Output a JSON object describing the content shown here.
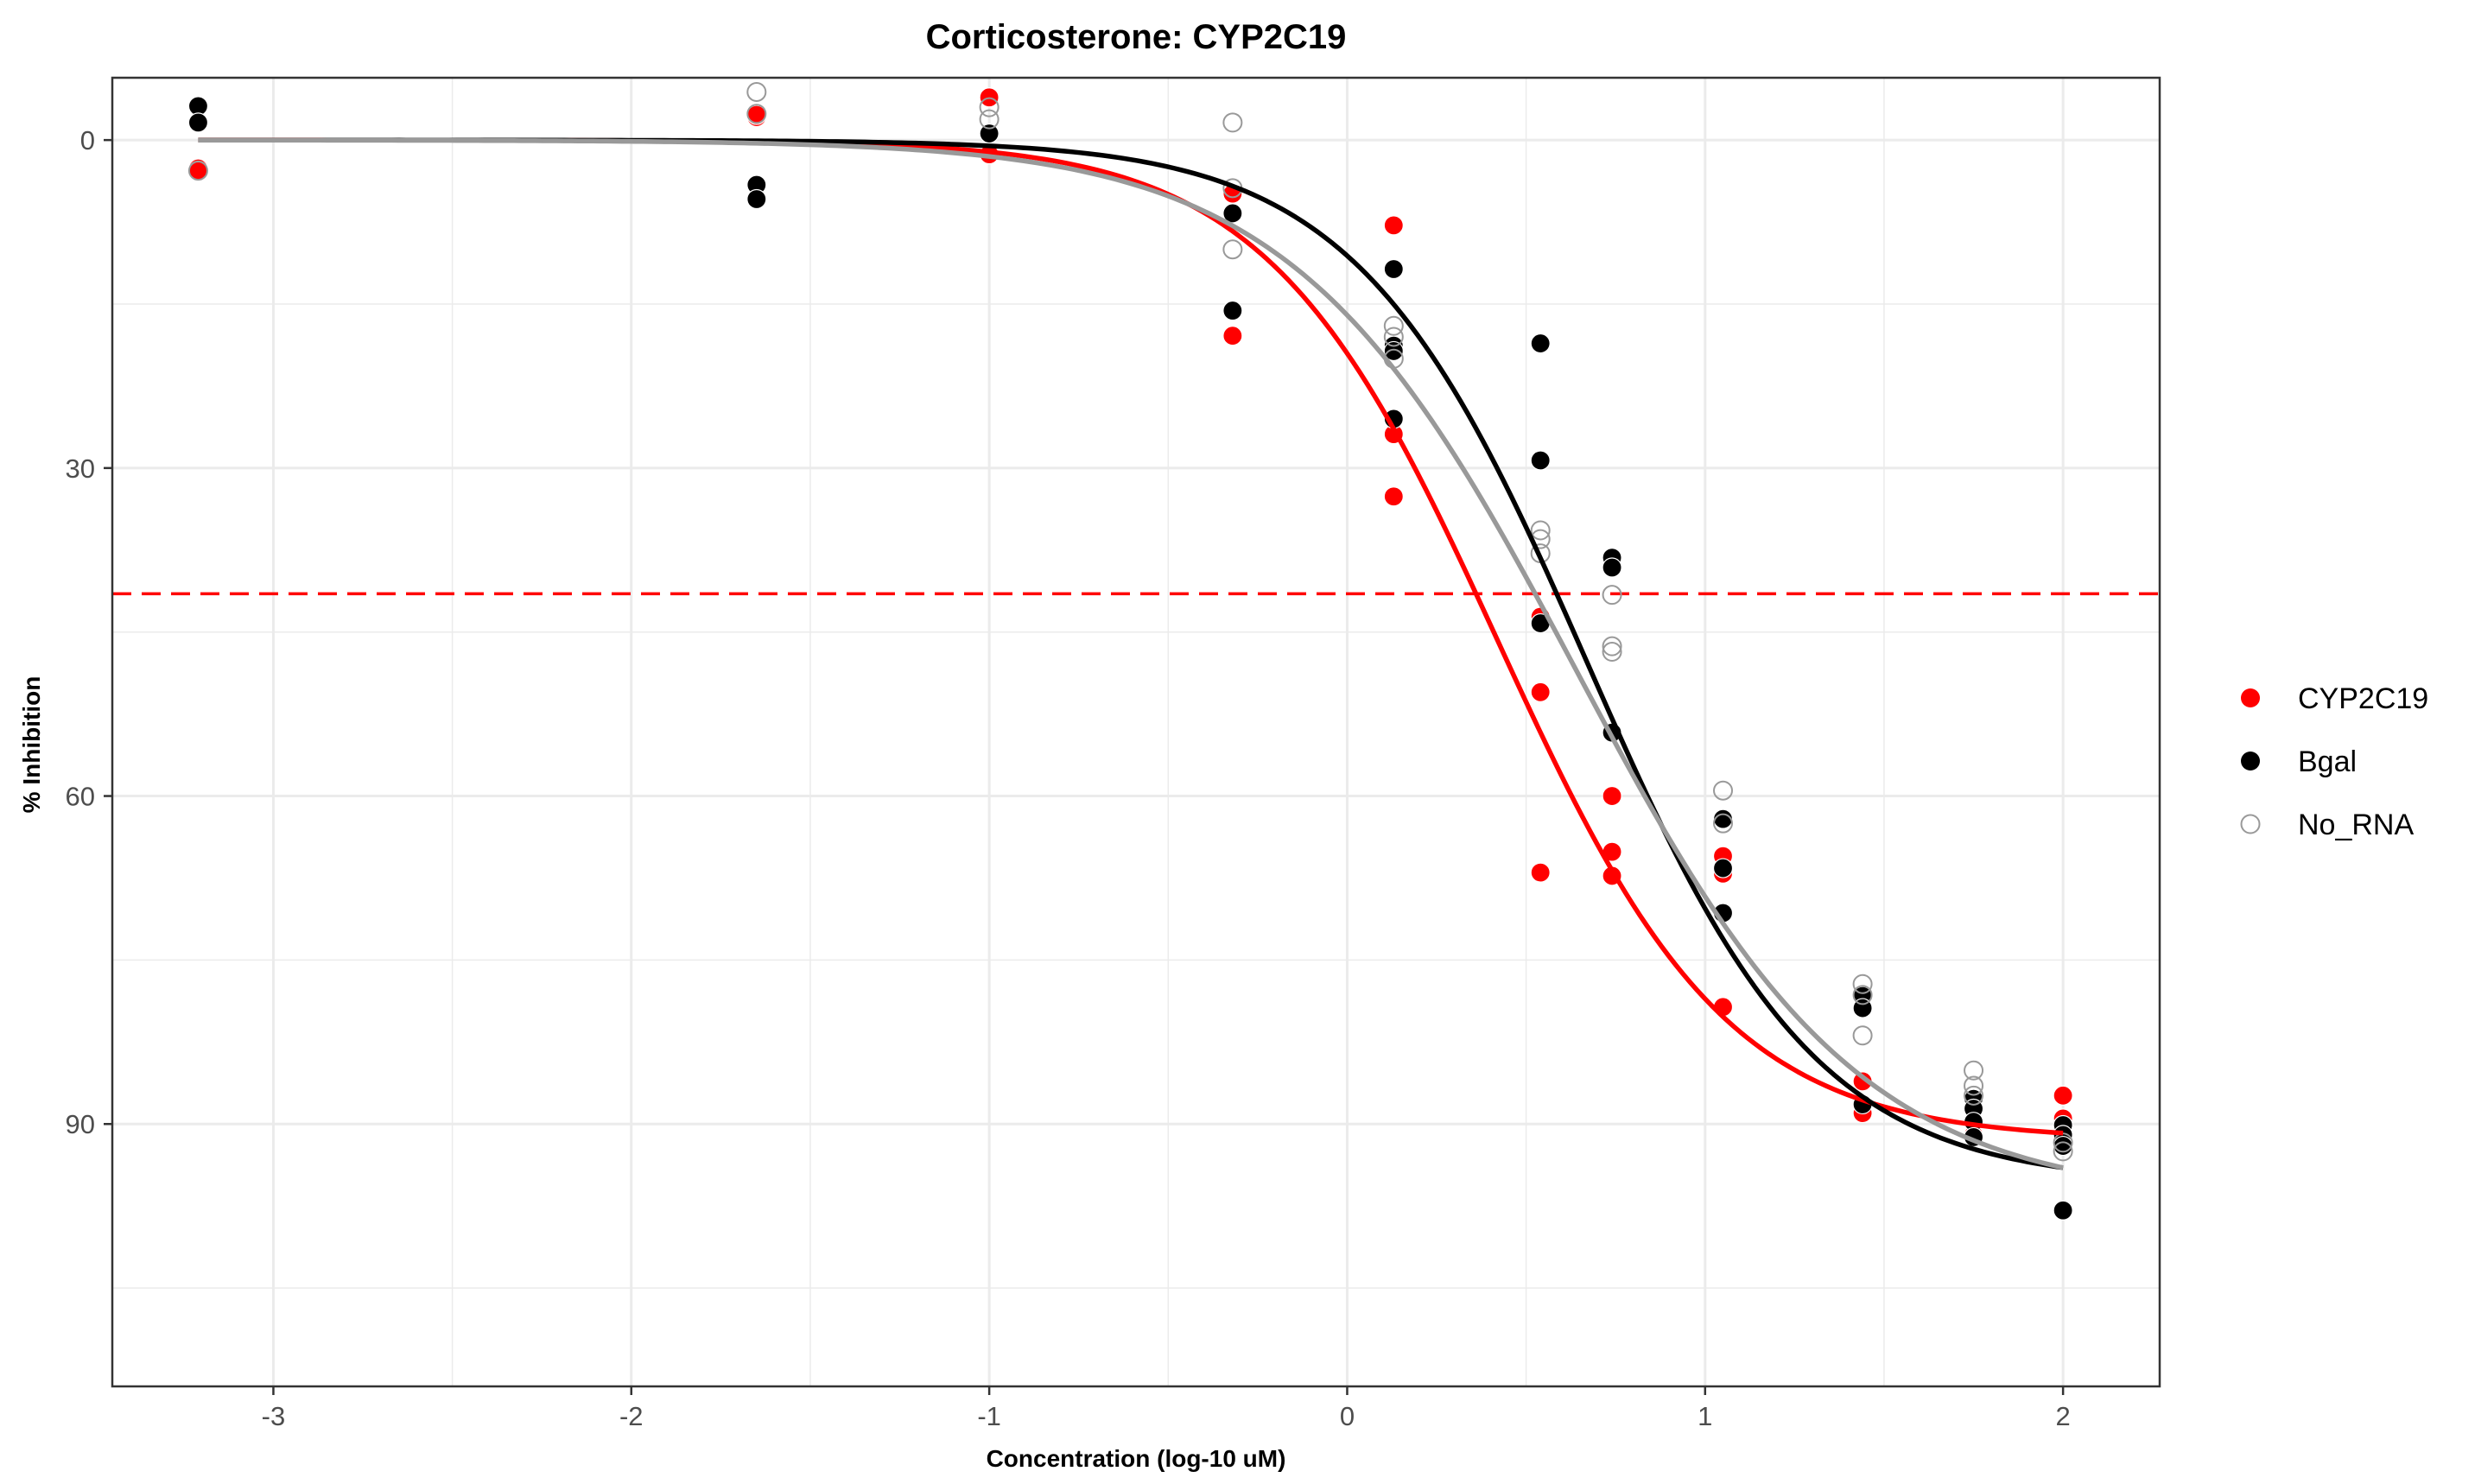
{
  "chart_data": {
    "type": "scatter",
    "title": "Corticosterone: CYP2C19",
    "xlabel": "Concentration (log-10 uM)",
    "ylabel": "% Inhibition",
    "xlim": [
      -3.45,
      2.27
    ],
    "ylim": [
      114,
      -5.7
    ],
    "y_reversed": true,
    "x_ticks": [
      -3,
      -2,
      -1,
      0,
      1,
      2
    ],
    "x_tick_labels": [
      "-3",
      "-2",
      "-1",
      "0",
      "1",
      "2"
    ],
    "y_ticks": [
      0,
      30,
      60,
      90
    ],
    "y_tick_labels": [
      "0",
      "30",
      "60",
      "90"
    ],
    "grid": true,
    "legend_position": "right",
    "reference_line": {
      "y": 41.5,
      "style": "dashed",
      "color": "#ff0000"
    },
    "series": [
      {
        "name": "CYP2C19",
        "color": "#ff0000",
        "marker": "filled-circle",
        "points": [
          [
            -3.21,
            2.6
          ],
          [
            -3.21,
            2.8
          ],
          [
            -1.65,
            -2.1
          ],
          [
            -1.65,
            -2.3
          ],
          [
            -1.0,
            -3.9
          ],
          [
            -1.0,
            1.3
          ],
          [
            -0.32,
            4.9
          ],
          [
            -0.32,
            17.9
          ],
          [
            0.13,
            7.8
          ],
          [
            0.13,
            26.9
          ],
          [
            0.13,
            32.6
          ],
          [
            0.54,
            43.6
          ],
          [
            0.54,
            50.5
          ],
          [
            0.54,
            67.0
          ],
          [
            0.74,
            60.0
          ],
          [
            0.74,
            65.1
          ],
          [
            0.74,
            67.3
          ],
          [
            1.05,
            65.5
          ],
          [
            1.05,
            67.1
          ],
          [
            1.05,
            79.3
          ],
          [
            1.44,
            86.1
          ],
          [
            1.44,
            89.0
          ],
          [
            1.75,
            87.9
          ],
          [
            1.75,
            91.0
          ],
          [
            2.0,
            87.4
          ],
          [
            2.0,
            89.5
          ]
        ],
        "curve": {
          "top": 0,
          "bottom": 91.5,
          "log_ic50": 0.42,
          "hill": 1.35
        }
      },
      {
        "name": "Bgal",
        "color": "#000000",
        "marker": "filled-circle",
        "points": [
          [
            -3.21,
            -3.1
          ],
          [
            -3.21,
            -1.6
          ],
          [
            -1.65,
            4.1
          ],
          [
            -1.65,
            5.4
          ],
          [
            -1.0,
            -0.6
          ],
          [
            -0.32,
            6.7
          ],
          [
            -0.32,
            15.6
          ],
          [
            0.13,
            11.8
          ],
          [
            0.13,
            18.8
          ],
          [
            0.13,
            19.3
          ],
          [
            0.13,
            25.5
          ],
          [
            0.54,
            18.6
          ],
          [
            0.54,
            29.3
          ],
          [
            0.54,
            44.2
          ],
          [
            0.74,
            38.2
          ],
          [
            0.74,
            39.1
          ],
          [
            0.74,
            54.2
          ],
          [
            1.05,
            62.1
          ],
          [
            1.05,
            66.6
          ],
          [
            1.05,
            70.7
          ],
          [
            1.44,
            78.3
          ],
          [
            1.44,
            79.4
          ],
          [
            1.44,
            88.2
          ],
          [
            1.75,
            87.7
          ],
          [
            1.75,
            88.6
          ],
          [
            1.75,
            89.8
          ],
          [
            1.75,
            91.2
          ],
          [
            2.0,
            90.1
          ],
          [
            2.0,
            91.0
          ],
          [
            2.0,
            92.0
          ],
          [
            2.0,
            97.9
          ]
        ],
        "curve": {
          "top": 0,
          "bottom": 95.5,
          "log_ic50": 0.67,
          "hill": 1.35
        }
      },
      {
        "name": "No_RNA",
        "color": "#999999",
        "marker": "open-circle",
        "points": [
          [
            -3.21,
            2.8
          ],
          [
            -1.65,
            -4.4
          ],
          [
            -1.65,
            -2.4
          ],
          [
            -1.0,
            -3.0
          ],
          [
            -1.0,
            -1.9
          ],
          [
            -0.32,
            -1.6
          ],
          [
            -0.32,
            4.4
          ],
          [
            -0.32,
            10.0
          ],
          [
            0.13,
            17.0
          ],
          [
            0.13,
            18.0
          ],
          [
            0.13,
            20.0
          ],
          [
            0.54,
            35.7
          ],
          [
            0.54,
            36.5
          ],
          [
            0.54,
            37.8
          ],
          [
            0.74,
            41.6
          ],
          [
            0.74,
            46.3
          ],
          [
            0.74,
            46.8
          ],
          [
            1.05,
            59.5
          ],
          [
            1.05,
            62.5
          ],
          [
            1.44,
            77.2
          ],
          [
            1.44,
            78.2
          ],
          [
            1.44,
            81.9
          ],
          [
            1.75,
            85.1
          ],
          [
            1.75,
            86.5
          ],
          [
            1.75,
            87.4
          ],
          [
            2.0,
            91.7
          ],
          [
            2.0,
            92.5
          ]
        ],
        "curve": {
          "top": 0,
          "bottom": 97,
          "log_ic50": 0.64,
          "hill": 1.1
        }
      }
    ]
  }
}
